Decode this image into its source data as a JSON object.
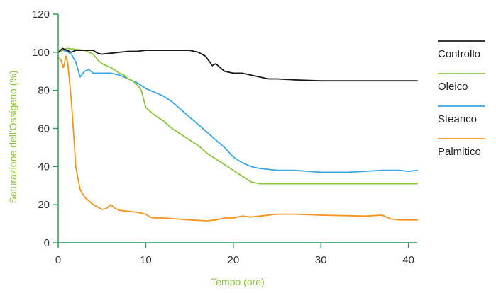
{
  "chart_data": {
    "type": "line",
    "xlabel": "Tempo (ore)",
    "ylabel": "Saturazione dell'Ossigeno (%)",
    "label_color": "#8cc63f",
    "axis_color": "#2e9e57",
    "xlim": [
      0,
      41
    ],
    "ylim": [
      0,
      120
    ],
    "x_ticks": [
      0,
      10,
      20,
      30,
      40
    ],
    "y_ticks": [
      0,
      20,
      40,
      60,
      80,
      100,
      120
    ],
    "grid": false,
    "legend_position": "right",
    "series": [
      {
        "name": "Controllo",
        "color": "#1a1a1a",
        "points": [
          [
            0,
            100
          ],
          [
            0.5,
            102
          ],
          [
            1,
            101
          ],
          [
            1.5,
            100
          ],
          [
            2,
            101
          ],
          [
            3,
            101
          ],
          [
            4,
            101
          ],
          [
            4.5,
            99.5
          ],
          [
            5,
            99
          ],
          [
            6,
            99.5
          ],
          [
            7,
            100
          ],
          [
            8,
            100.5
          ],
          [
            9,
            100.5
          ],
          [
            10,
            101
          ],
          [
            12,
            101
          ],
          [
            15,
            101
          ],
          [
            16,
            100
          ],
          [
            16.8,
            98
          ],
          [
            17.3,
            95
          ],
          [
            17.6,
            93
          ],
          [
            18,
            94
          ],
          [
            18.5,
            92
          ],
          [
            19,
            90
          ],
          [
            20,
            89
          ],
          [
            21,
            89
          ],
          [
            22,
            88
          ],
          [
            23,
            87
          ],
          [
            24,
            86
          ],
          [
            25,
            86
          ],
          [
            27,
            85.5
          ],
          [
            30,
            85
          ],
          [
            35,
            85
          ],
          [
            40,
            85
          ],
          [
            41,
            85
          ]
        ]
      },
      {
        "name": "Oleico",
        "color": "#8cc63f",
        "points": [
          [
            0,
            100
          ],
          [
            0.5,
            101
          ],
          [
            1,
            102
          ],
          [
            2,
            101.5
          ],
          [
            3,
            101
          ],
          [
            4,
            99
          ],
          [
            4.5,
            96
          ],
          [
            5,
            94
          ],
          [
            6,
            92
          ],
          [
            7,
            89
          ],
          [
            7.5,
            88
          ],
          [
            8,
            86
          ],
          [
            8.5,
            85
          ],
          [
            9,
            83
          ],
          [
            9.5,
            80
          ],
          [
            10,
            71
          ],
          [
            11,
            67
          ],
          [
            12,
            64
          ],
          [
            13,
            60
          ],
          [
            14,
            57
          ],
          [
            15,
            54
          ],
          [
            16,
            51
          ],
          [
            17,
            47
          ],
          [
            18,
            44
          ],
          [
            19,
            41
          ],
          [
            20,
            38
          ],
          [
            21,
            35
          ],
          [
            22,
            32
          ],
          [
            23,
            31
          ],
          [
            25,
            31
          ],
          [
            30,
            31
          ],
          [
            35,
            31
          ],
          [
            40,
            31
          ],
          [
            41,
            31
          ]
        ]
      },
      {
        "name": "Stearico",
        "color": "#3aa6e3",
        "points": [
          [
            0,
            100
          ],
          [
            0.5,
            101
          ],
          [
            1,
            100.5
          ],
          [
            1.5,
            99
          ],
          [
            2,
            95
          ],
          [
            2.5,
            87
          ],
          [
            3,
            90
          ],
          [
            3.5,
            91
          ],
          [
            4,
            89
          ],
          [
            5,
            89
          ],
          [
            6,
            89
          ],
          [
            7,
            88
          ],
          [
            8,
            86
          ],
          [
            9,
            84
          ],
          [
            10,
            81
          ],
          [
            11,
            79
          ],
          [
            12,
            77
          ],
          [
            13,
            74
          ],
          [
            14,
            70
          ],
          [
            15,
            66
          ],
          [
            16,
            62
          ],
          [
            17,
            58
          ],
          [
            18,
            54
          ],
          [
            19,
            50
          ],
          [
            20,
            45
          ],
          [
            21,
            42
          ],
          [
            22,
            40
          ],
          [
            23,
            39
          ],
          [
            25,
            38
          ],
          [
            27,
            38
          ],
          [
            30,
            37
          ],
          [
            33,
            37
          ],
          [
            35,
            37.5
          ],
          [
            37,
            38
          ],
          [
            39,
            38
          ],
          [
            40,
            37.5
          ],
          [
            41,
            38
          ]
        ]
      },
      {
        "name": "Palmitico",
        "color": "#f7941d",
        "points": [
          [
            0,
            97
          ],
          [
            0.3,
            96
          ],
          [
            0.6,
            92
          ],
          [
            0.9,
            98
          ],
          [
            1.1,
            94
          ],
          [
            1.5,
            75
          ],
          [
            1.8,
            55
          ],
          [
            2,
            40
          ],
          [
            2.5,
            28
          ],
          [
            3,
            24
          ],
          [
            4,
            20
          ],
          [
            5,
            17.5
          ],
          [
            5.5,
            18
          ],
          [
            6,
            20
          ],
          [
            6.5,
            18
          ],
          [
            7,
            17
          ],
          [
            8,
            16.5
          ],
          [
            9,
            16
          ],
          [
            10,
            15
          ],
          [
            10.5,
            13.5
          ],
          [
            11,
            13
          ],
          [
            12,
            13
          ],
          [
            15,
            12
          ],
          [
            17,
            11.5
          ],
          [
            18,
            12
          ],
          [
            19,
            13
          ],
          [
            20,
            13
          ],
          [
            21,
            14
          ],
          [
            22,
            13.5
          ],
          [
            23,
            14
          ],
          [
            25,
            15
          ],
          [
            27,
            15
          ],
          [
            30,
            14.5
          ],
          [
            35,
            14
          ],
          [
            37,
            14.5
          ],
          [
            38,
            12.5
          ],
          [
            39,
            12
          ],
          [
            40,
            12
          ],
          [
            41,
            12
          ]
        ]
      }
    ]
  }
}
